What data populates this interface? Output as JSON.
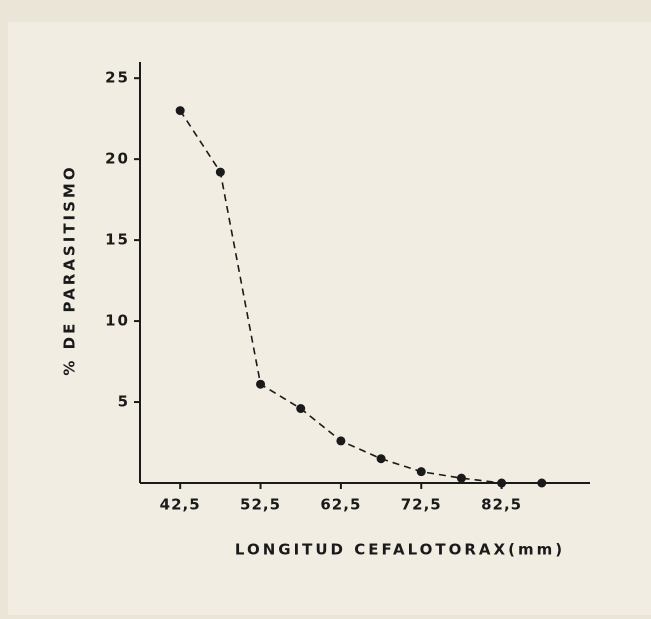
{
  "chart_data": {
    "type": "line",
    "y_label": "% DE PARASITISMO",
    "x_label": "LONGITUD CEFALOTORAX(mm)",
    "x": [
      42.5,
      47.5,
      52.5,
      57.5,
      62.5,
      67.5,
      72.5,
      77.5,
      82.5,
      87.5
    ],
    "values": [
      23,
      19.2,
      6.1,
      4.6,
      2.6,
      1.5,
      0.7,
      0.3,
      0,
      0
    ],
    "color": "#1a1a1a",
    "line_style": "dashed",
    "xlim": [
      37.5,
      93.5
    ],
    "xticks": [
      {
        "value": 42.5,
        "label": "42,5"
      },
      {
        "value": 52.5,
        "label": "52,5"
      },
      {
        "value": 62.5,
        "label": "62,5"
      },
      {
        "value": 72.5,
        "label": "72,5"
      },
      {
        "value": 82.5,
        "label": "82,5"
      }
    ],
    "ylim": [
      0,
      26
    ],
    "yticks": [
      5,
      10,
      15,
      20,
      25
    ]
  }
}
